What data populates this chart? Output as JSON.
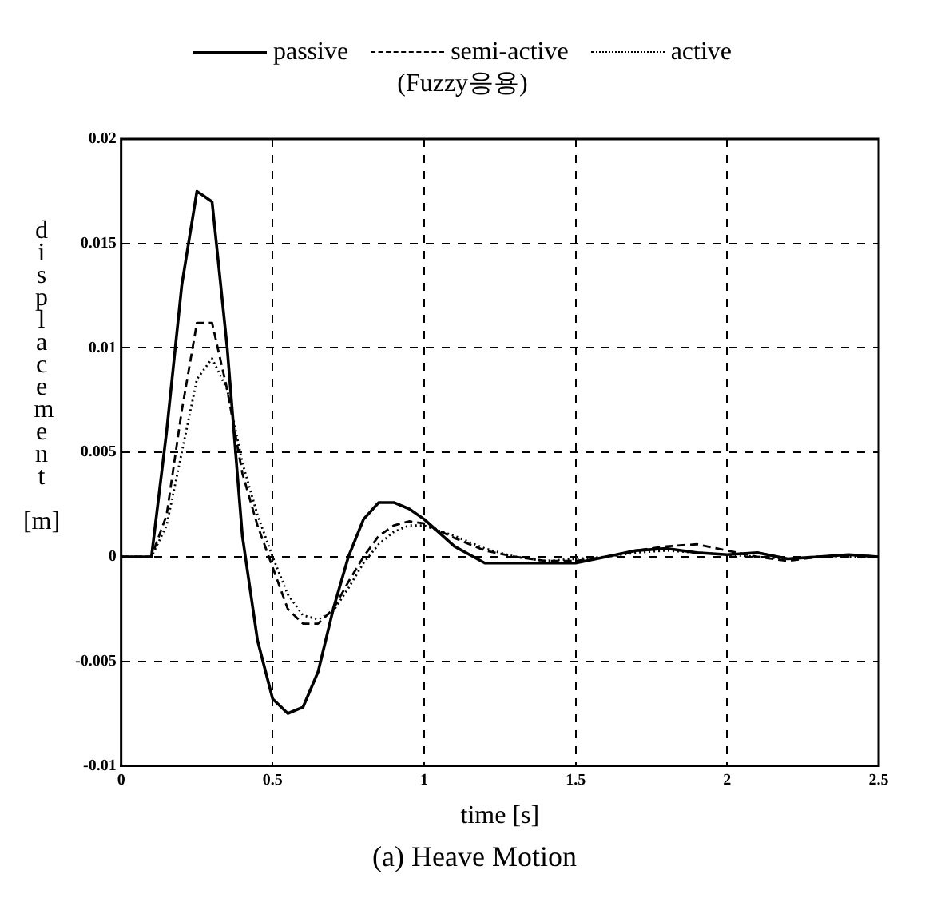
{
  "chart_data": {
    "type": "line",
    "title": "(a) Heave Motion",
    "xlabel": "time [s]",
    "ylabel": "displacement [m]",
    "legend_title": "(Fuzzy응용)",
    "legend": "top",
    "x": [
      0,
      0.1,
      0.15,
      0.2,
      0.25,
      0.3,
      0.35,
      0.4,
      0.45,
      0.5,
      0.55,
      0.6,
      0.65,
      0.7,
      0.75,
      0.8,
      0.85,
      0.9,
      0.95,
      1.0,
      1.1,
      1.2,
      1.3,
      1.4,
      1.5,
      1.6,
      1.7,
      1.8,
      1.9,
      2.0,
      2.1,
      2.2,
      2.3,
      2.4,
      2.5
    ],
    "series": [
      {
        "name": "passive",
        "color": "#000000",
        "line_style": "solid",
        "values": [
          0,
          0,
          0.006,
          0.013,
          0.0175,
          0.017,
          0.01,
          0.001,
          -0.004,
          -0.0068,
          -0.0075,
          -0.0072,
          -0.0055,
          -0.0025,
          0,
          0.0018,
          0.0026,
          0.0026,
          0.0023,
          0.0018,
          0.0005,
          -0.0003,
          -0.0003,
          -0.0003,
          -0.0003,
          0,
          0.0003,
          0.0004,
          0.0002,
          0.0001,
          0.0002,
          -0.0001,
          0,
          0.0001,
          0
        ]
      },
      {
        "name": "semi-active",
        "color": "#000000",
        "line_style": "dashed",
        "values": [
          0,
          0,
          0.002,
          0.007,
          0.0112,
          0.0112,
          0.008,
          0.004,
          0.0015,
          -0.0005,
          -0.0025,
          -0.0032,
          -0.0032,
          -0.0025,
          -0.0012,
          0,
          0.001,
          0.0015,
          0.0017,
          0.0016,
          0.0009,
          0.0003,
          0,
          -0.0002,
          -0.0002,
          0,
          0.0003,
          0.0005,
          0.0006,
          0.0003,
          0,
          -0.0002,
          0,
          0.0001,
          0
        ]
      },
      {
        "name": "active",
        "color": "#000000",
        "line_style": "dotted",
        "values": [
          0,
          0,
          0.0015,
          0.005,
          0.0085,
          0.0095,
          0.008,
          0.0045,
          0.002,
          0,
          -0.0018,
          -0.0028,
          -0.003,
          -0.0026,
          -0.0015,
          -0.0003,
          0.0006,
          0.0012,
          0.0015,
          0.0015,
          0.001,
          0.0004,
          0,
          -0.0002,
          -0.0001,
          0,
          0.0002,
          0.0003,
          0.0002,
          0.0001,
          0,
          -0.0001,
          0,
          0,
          0
        ]
      }
    ],
    "xlim": [
      0,
      2.5
    ],
    "xticks": [
      0,
      0.5,
      1,
      1.5,
      2,
      2.5
    ],
    "ylim": [
      -0.01,
      0.02
    ],
    "yticks": [
      -0.01,
      -0.005,
      0,
      0.005,
      0.01,
      0.015,
      0.02
    ],
    "grid": true,
    "marker": "none"
  }
}
